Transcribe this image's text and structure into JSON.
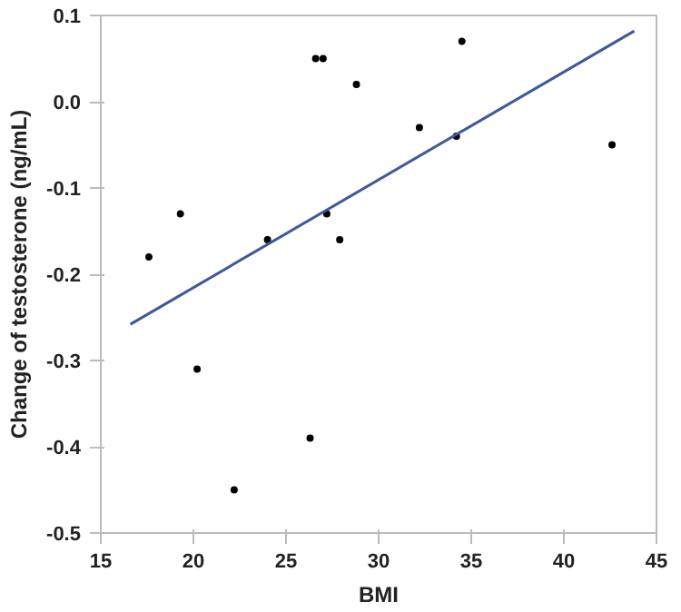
{
  "chart_data": {
    "type": "scatter",
    "xlabel": "BMI",
    "ylabel": "Change of testosterone (ng/mL)",
    "xlim": [
      15,
      45
    ],
    "ylim": [
      -0.5,
      0.1
    ],
    "xticks": [
      15,
      20,
      25,
      30,
      35,
      40,
      45
    ],
    "yticks": [
      {
        "value": -0.5,
        "label": "-0.5"
      },
      {
        "value": -0.4,
        "label": "-0.4"
      },
      {
        "value": -0.3,
        "label": "-0.3"
      },
      {
        "value": -0.2,
        "label": "-0.2"
      },
      {
        "value": -0.1,
        "label": "-0.1"
      },
      {
        "value": 0,
        "label": "0.0"
      },
      {
        "value": 0.1,
        "label": "0.1"
      }
    ],
    "grid": false,
    "series": [
      {
        "color": "#000000",
        "marker": "circle",
        "x": [
          17.6,
          19.3,
          20.2,
          22.2,
          24.0,
          26.3,
          26.6,
          27.0,
          27.2,
          27.9,
          28.8,
          32.2,
          34.2,
          34.5,
          42.6
        ],
        "values": [
          -0.18,
          -0.13,
          -0.31,
          -0.45,
          -0.16,
          -0.39,
          0.05,
          0.05,
          -0.13,
          -0.16,
          0.02,
          -0.03,
          -0.04,
          0.07,
          -0.05
        ]
      },
      {
        "type": "line",
        "color": "#3d5a99",
        "line_style": "solid",
        "x": [
          16.6,
          43.8
        ],
        "values": [
          -0.258,
          0.082
        ]
      }
    ]
  }
}
